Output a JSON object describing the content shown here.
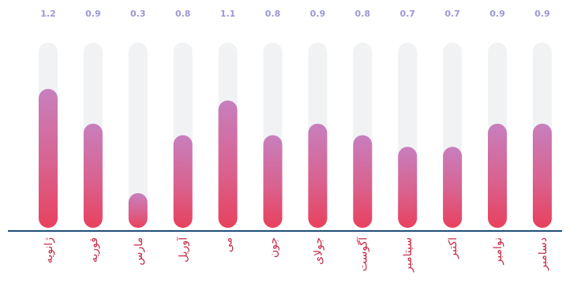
{
  "chart_data": {
    "type": "bar",
    "categories": [
      "ژانویه",
      "فوریه",
      "مارس",
      "آوریل",
      "می",
      "جون",
      "جولای",
      "آگوست",
      "سپتامبر",
      "اکتبر",
      "نوامبر",
      "دسامبر"
    ],
    "values": [
      1.2,
      0.9,
      0.3,
      0.8,
      1.1,
      0.8,
      0.9,
      0.8,
      0.7,
      0.7,
      0.9,
      0.9
    ],
    "value_labels": [
      "1.2",
      "0.9",
      "0.3",
      "0.8",
      "1.1",
      "0.8",
      "0.9",
      "0.8",
      "0.7",
      "0.7",
      "0.9",
      "0.9"
    ],
    "ylim": [
      0,
      1.6
    ],
    "grid": false,
    "legend": "none",
    "colors": {
      "bar_top": "#c77fbe",
      "bar_bottom": "#e8415d",
      "track": "#f1f2f4",
      "value_label": "#9b97d6",
      "category_label": "#c62a47",
      "axis": "#1f4e79"
    }
  }
}
